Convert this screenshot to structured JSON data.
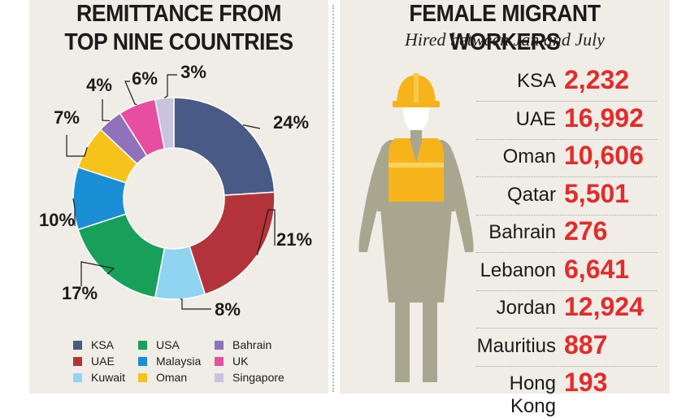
{
  "remittance": {
    "title_line1": "REMITTANCE FROM",
    "title_line2": "TOP NINE COUNTRIES"
  },
  "workers": {
    "title": "FEMALE MIGRANT WORKERS",
    "subtitle": "Hired between Jan and July"
  },
  "chart_data": [
    {
      "type": "pie",
      "title": "REMITTANCE FROM TOP NINE COUNTRIES",
      "categories": [
        "KSA",
        "UAE",
        "Kuwait",
        "USA",
        "Malaysia",
        "Oman",
        "Bahrain",
        "UK",
        "Singapore"
      ],
      "values": [
        24,
        21,
        8,
        17,
        10,
        7,
        4,
        6,
        3
      ],
      "labels": [
        "24%",
        "21%",
        "8%",
        "17%",
        "10%",
        "7%",
        "4%",
        "6%",
        "3%"
      ],
      "colors": [
        "#4a5a86",
        "#b2343a",
        "#8fd4f0",
        "#18a05a",
        "#1a8ed4",
        "#f6c31c",
        "#8f72ba",
        "#e74ea0",
        "#c9c3de"
      ],
      "donut": true,
      "legend_position": "bottom"
    },
    {
      "type": "table",
      "title": "FEMALE MIGRANT WORKERS",
      "subtitle": "Hired between Jan and July",
      "rows": [
        {
          "label": "KSA",
          "value": "2,232"
        },
        {
          "label": "UAE",
          "value": "16,992"
        },
        {
          "label": "Oman",
          "value": "10,606"
        },
        {
          "label": "Qatar",
          "value": "5,501"
        },
        {
          "label": "Bahrain",
          "value": "276"
        },
        {
          "label": "Lebanon",
          "value": "6,641"
        },
        {
          "label": "Jordan",
          "value": "12,924"
        },
        {
          "label": "Mauritius",
          "value": "887"
        },
        {
          "label": "Hong Kong",
          "value": "193"
        }
      ]
    }
  ],
  "icons": {
    "figure": "female-worker-with-helmet-icon"
  },
  "colors": {
    "panel_bg": "#efede6",
    "value_red": "#e32b2b",
    "figure_gray": "#a9a690",
    "helmet_yellow": "#f6b41a"
  }
}
